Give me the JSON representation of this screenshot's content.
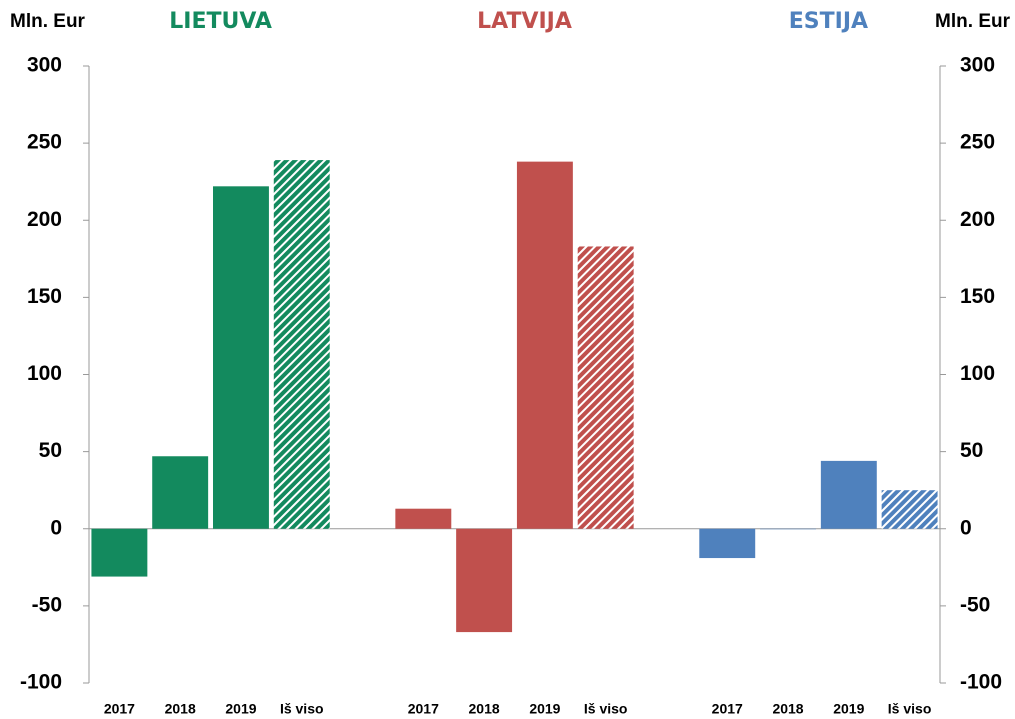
{
  "chart_data": {
    "type": "bar",
    "ylabel": "Mln. Eur",
    "y2label": "Mln. Eur",
    "categories": [
      "2017",
      "2018",
      "2019",
      "Iš viso"
    ],
    "hatch": [
      false,
      false,
      false,
      true
    ],
    "series": [
      {
        "name": "LIETUVA",
        "color": "#138a5e",
        "values": [
          -31,
          47,
          222,
          239
        ]
      },
      {
        "name": "LATVIJA",
        "color": "#c0504d",
        "values": [
          13,
          -67,
          238,
          183
        ]
      },
      {
        "name": "ESTIJA",
        "color": "#4f81bd",
        "values": [
          -19,
          0,
          44,
          25
        ]
      }
    ],
    "ylim": [
      -100,
      300
    ],
    "yticks": [
      -100,
      -50,
      0,
      50,
      100,
      150,
      200,
      250,
      300
    ],
    "y2lim": [
      -100,
      300
    ],
    "y2ticks": [
      -100,
      -50,
      0,
      50,
      100,
      150,
      200,
      250,
      300
    ],
    "grid": false
  }
}
